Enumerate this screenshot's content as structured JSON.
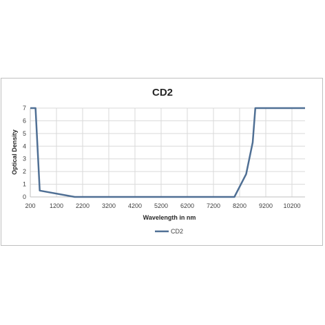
{
  "chart_data": {
    "type": "line",
    "title": "CD2",
    "xlabel": "Wavelength in nm",
    "ylabel": "Optical Density",
    "xlim": [
      200,
      10700
    ],
    "ylim": [
      0,
      7
    ],
    "x_ticks": [
      200,
      1200,
      2200,
      3200,
      4200,
      5200,
      6200,
      7200,
      8200,
      9200,
      10200
    ],
    "y_ticks": [
      0,
      1,
      2,
      3,
      4,
      5,
      6,
      7
    ],
    "grid": true,
    "legend_position": "bottom",
    "series": [
      {
        "name": "CD2",
        "color": "#4f6f94",
        "x": [
          200,
          400,
          560,
          1900,
          7700,
          8000,
          8450,
          8700,
          8800,
          10700
        ],
        "y": [
          7,
          7,
          0.5,
          0,
          0,
          0,
          1.8,
          4.3,
          7,
          7
        ]
      }
    ]
  }
}
